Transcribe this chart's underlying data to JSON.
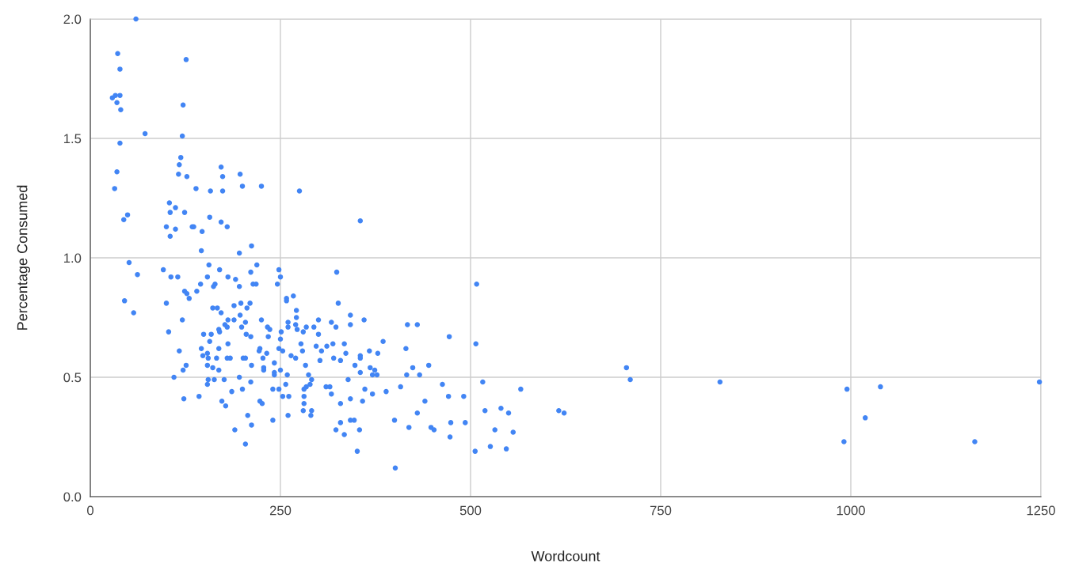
{
  "chart_data": {
    "type": "scatter",
    "xlabel": "Wordcount",
    "ylabel": "Percentage Consumed",
    "x": [
      36,
      126,
      39,
      29,
      33,
      39,
      35,
      40,
      122,
      72,
      121,
      39,
      119,
      117,
      172,
      116,
      127,
      174,
      197,
      35,
      32,
      139,
      158,
      174,
      200,
      225,
      104,
      49,
      44,
      105,
      112,
      124,
      157,
      172,
      180,
      100,
      112,
      134,
      136,
      147,
      105,
      212,
      146,
      196,
      355,
      275,
      60,
      51,
      62,
      96,
      106,
      115,
      156,
      170,
      154,
      181,
      191,
      196,
      219,
      211,
      214,
      218,
      248,
      250,
      246,
      145,
      164,
      162,
      124,
      127,
      130,
      140,
      45,
      57,
      100,
      121,
      103,
      161,
      167,
      172,
      189,
      198,
      210,
      206,
      197,
      181,
      189,
      177,
      180,
      204,
      199,
      225,
      233,
      236,
      169,
      170,
      149,
      159,
      157,
      205,
      211,
      234,
      251,
      250,
      181,
      169,
      223,
      222,
      232,
      227,
      248,
      253,
      117,
      146,
      148,
      154,
      155,
      154,
      166,
      180,
      184,
      201,
      204,
      212,
      228,
      228,
      242,
      242,
      242,
      250,
      126,
      122,
      161,
      169,
      110,
      155,
      163,
      154,
      176,
      196,
      211,
      186,
      200,
      240,
      248,
      253,
      123,
      143,
      173,
      178,
      223,
      226,
      207,
      212,
      190,
      240,
      204,
      324,
      508,
      258,
      258,
      267,
      326,
      271,
      271,
      342,
      360,
      300,
      317,
      260,
      260,
      270,
      272,
      284,
      280,
      294,
      300,
      323,
      342,
      417,
      430,
      472,
      507,
      385,
      277,
      297,
      311,
      319,
      334,
      304,
      336,
      367,
      378,
      415,
      264,
      270,
      279,
      320,
      329,
      302,
      355,
      355,
      348,
      368,
      374,
      371,
      377,
      355,
      283,
      287,
      259,
      424,
      445,
      416,
      433,
      291,
      289,
      339,
      284,
      257,
      281,
      310,
      315,
      408,
      463,
      317,
      361,
      371,
      389,
      471,
      491,
      261,
      281,
      281,
      329,
      342,
      358,
      440,
      280,
      291,
      290,
      260,
      430,
      342,
      347,
      329,
      400,
      474,
      493,
      323,
      354,
      419,
      448,
      452,
      334,
      473,
      351,
      506,
      401,
      516,
      705,
      710,
      828,
      995,
      1039,
      1248,
      566,
      519,
      540,
      550,
      616,
      623,
      532,
      556,
      526,
      547,
      1019,
      991,
      1163
    ],
    "series": [
      {
        "color": "#4285f4",
        "values": [
          1.855,
          1.83,
          1.79,
          1.67,
          1.68,
          1.68,
          1.65,
          1.62,
          1.64,
          1.52,
          1.51,
          1.48,
          1.42,
          1.39,
          1.38,
          1.35,
          1.34,
          1.34,
          1.35,
          1.36,
          1.29,
          1.29,
          1.28,
          1.28,
          1.3,
          1.3,
          1.23,
          1.18,
          1.16,
          1.19,
          1.21,
          1.19,
          1.17,
          1.15,
          1.13,
          1.13,
          1.12,
          1.13,
          1.13,
          1.11,
          1.09,
          1.05,
          1.03,
          1.02,
          1.155,
          1.28,
          2.0,
          0.98,
          0.93,
          0.95,
          0.92,
          0.92,
          0.97,
          0.95,
          0.92,
          0.92,
          0.91,
          0.88,
          0.97,
          0.94,
          0.89,
          0.89,
          0.95,
          0.92,
          0.89,
          0.89,
          0.89,
          0.88,
          0.86,
          0.85,
          0.83,
          0.86,
          0.82,
          0.77,
          0.81,
          0.74,
          0.69,
          0.79,
          0.79,
          0.77,
          0.8,
          0.81,
          0.81,
          0.79,
          0.76,
          0.74,
          0.74,
          0.72,
          0.71,
          0.73,
          0.71,
          0.74,
          0.71,
          0.7,
          0.7,
          0.69,
          0.68,
          0.68,
          0.65,
          0.68,
          0.67,
          0.67,
          0.69,
          0.66,
          0.64,
          0.62,
          0.62,
          0.61,
          0.6,
          0.58,
          0.62,
          0.61,
          0.61,
          0.62,
          0.59,
          0.6,
          0.58,
          0.55,
          0.58,
          0.58,
          0.58,
          0.58,
          0.58,
          0.55,
          0.54,
          0.53,
          0.56,
          0.52,
          0.51,
          0.53,
          0.55,
          0.53,
          0.54,
          0.53,
          0.5,
          0.49,
          0.49,
          0.47,
          0.49,
          0.5,
          0.48,
          0.44,
          0.45,
          0.45,
          0.45,
          0.42,
          0.41,
          0.42,
          0.4,
          0.38,
          0.4,
          0.39,
          0.34,
          0.3,
          0.28,
          0.32,
          0.22,
          0.94,
          0.89,
          0.83,
          0.82,
          0.84,
          0.81,
          0.78,
          0.75,
          0.76,
          0.74,
          0.74,
          0.73,
          0.73,
          0.71,
          0.72,
          0.7,
          0.71,
          0.69,
          0.71,
          0.68,
          0.71,
          0.72,
          0.72,
          0.72,
          0.67,
          0.64,
          0.65,
          0.64,
          0.63,
          0.63,
          0.64,
          0.64,
          0.61,
          0.6,
          0.61,
          0.6,
          0.62,
          0.59,
          0.58,
          0.61,
          0.58,
          0.57,
          0.57,
          0.59,
          0.58,
          0.55,
          0.54,
          0.53,
          0.51,
          0.51,
          0.52,
          0.55,
          0.51,
          0.51,
          0.54,
          0.55,
          0.51,
          0.51,
          0.49,
          0.47,
          0.49,
          0.46,
          0.47,
          0.45,
          0.46,
          0.46,
          0.46,
          0.47,
          0.43,
          0.45,
          0.43,
          0.44,
          0.42,
          0.42,
          0.42,
          0.42,
          0.39,
          0.39,
          0.41,
          0.4,
          0.4,
          0.36,
          0.36,
          0.34,
          0.34,
          0.35,
          0.32,
          0.32,
          0.31,
          0.32,
          0.31,
          0.31,
          0.28,
          0.28,
          0.29,
          0.29,
          0.28,
          0.26,
          0.25,
          0.19,
          0.19,
          0.12,
          0.48,
          0.54,
          0.49,
          0.48,
          0.45,
          0.46,
          0.48,
          0.45,
          0.36,
          0.37,
          0.35,
          0.36,
          0.35,
          0.28,
          0.27,
          0.21,
          0.2,
          0.33,
          0.23,
          0.23
        ]
      }
    ],
    "xlim": [
      0,
      1250
    ],
    "xticks": [
      0,
      250,
      500,
      750,
      1000,
      1250
    ],
    "ylim": [
      0,
      2
    ],
    "yticks": [
      {
        "value": 0,
        "label": "0.0"
      },
      {
        "value": 0.5,
        "label": "0.5"
      },
      {
        "value": 1,
        "label": "1.0"
      },
      {
        "value": 1.5,
        "label": "1.5"
      },
      {
        "value": 2,
        "label": "2.0"
      }
    ],
    "grid": true,
    "marker": "circle"
  }
}
